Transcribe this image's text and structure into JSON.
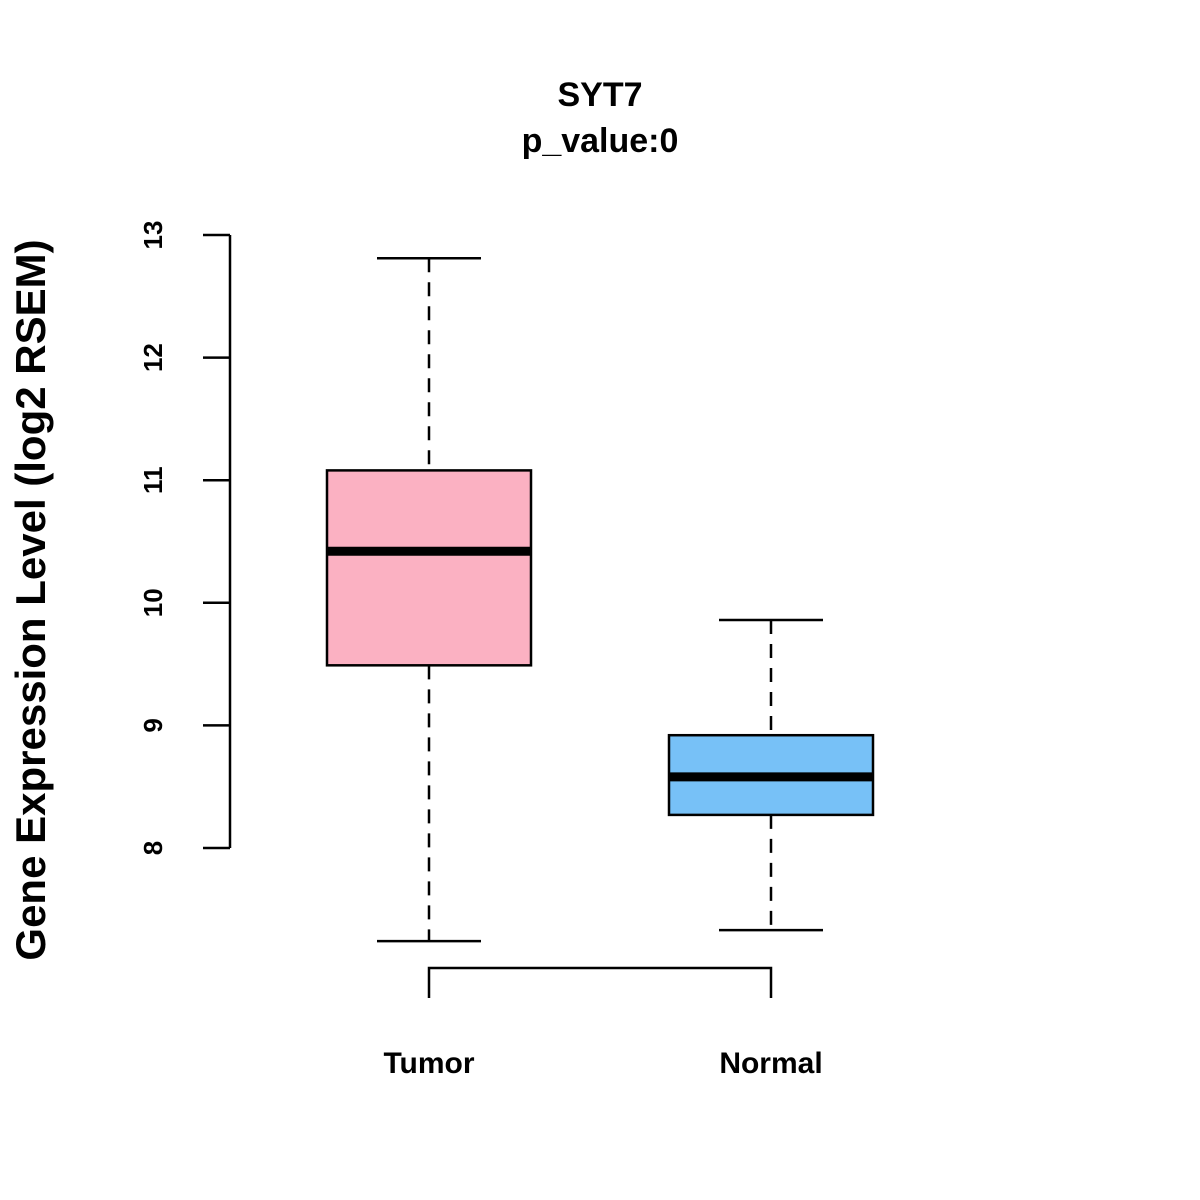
{
  "chart_data": {
    "type": "box",
    "title": "SYT7",
    "subtitle": "p_value:0",
    "xlabel": "",
    "ylabel": "Gene Expression Level (log2 RSEM)",
    "ylim": [
      7,
      13
    ],
    "yticks": [
      8,
      9,
      10,
      11,
      12,
      13
    ],
    "ytick_labels": [
      "8",
      "9",
      "10",
      "11",
      "12",
      "13"
    ],
    "grid": false,
    "categories": [
      "Tumor",
      "Normal"
    ],
    "boxes": [
      {
        "name": "Tumor",
        "whisker_low": 7.24,
        "q1": 9.49,
        "median": 10.42,
        "q3": 11.08,
        "whisker_high": 12.81,
        "color": "#FBB1C2"
      },
      {
        "name": "Normal",
        "whisker_low": 7.33,
        "q1": 8.27,
        "median": 8.58,
        "q3": 8.92,
        "whisker_high": 9.86,
        "color": "#77C1F7"
      }
    ],
    "comparison_bracket": [
      "Tumor",
      "Normal"
    ]
  }
}
